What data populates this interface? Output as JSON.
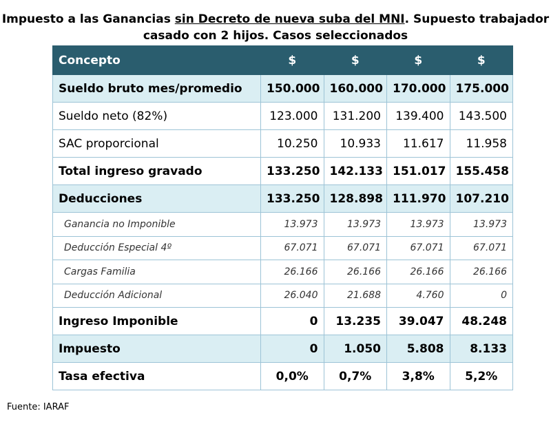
{
  "title": {
    "prefix": "Impuesto a las Ganancias ",
    "underlined": "sin Decreto de nueva suba del MNI",
    "suffix": ". Supuesto trabajador",
    "line2": "casado con 2 hijos. Casos seleccionados"
  },
  "colors": {
    "header_bg": "#2a5d6e",
    "shaded_row": "#daeef3",
    "border": "#9cc3d6"
  },
  "table": {
    "headers": [
      "Concepto",
      "$",
      "$",
      "$",
      "$"
    ],
    "rows": [
      {
        "label": "Sueldo bruto mes/promedio",
        "values": [
          "150.000",
          "160.000",
          "170.000",
          "175.000"
        ]
      },
      {
        "label": "Sueldo neto (82%)",
        "values": [
          "123.000",
          "131.200",
          "139.400",
          "143.500"
        ]
      },
      {
        "label": "SAC proporcional",
        "values": [
          "10.250",
          "10.933",
          "11.617",
          "11.958"
        ]
      },
      {
        "label": "Total ingreso gravado",
        "values": [
          "133.250",
          "142.133",
          "151.017",
          "155.458"
        ]
      },
      {
        "label": "Deducciones",
        "values": [
          "133.250",
          "128.898",
          "111.970",
          "107.210"
        ]
      },
      {
        "label": "Ganancia no Imponible",
        "values": [
          "13.973",
          "13.973",
          "13.973",
          "13.973"
        ]
      },
      {
        "label": "Deducción Especial 4º",
        "values": [
          "67.071",
          "67.071",
          "67.071",
          "67.071"
        ]
      },
      {
        "label": "Cargas Familia",
        "values": [
          "26.166",
          "26.166",
          "26.166",
          "26.166"
        ]
      },
      {
        "label": "Deducción Adicional",
        "values": [
          "26.040",
          "21.688",
          "4.760",
          "0"
        ]
      },
      {
        "label": "Ingreso Imponible",
        "values": [
          "0",
          "13.235",
          "39.047",
          "48.248"
        ]
      },
      {
        "label": "Impuesto",
        "values": [
          "0",
          "1.050",
          "5.808",
          "8.133"
        ]
      },
      {
        "label": "Tasa efectiva",
        "values": [
          "0,0%",
          "0,7%",
          "3,8%",
          "5,2%"
        ]
      }
    ]
  },
  "source": "Fuente: IARAF"
}
